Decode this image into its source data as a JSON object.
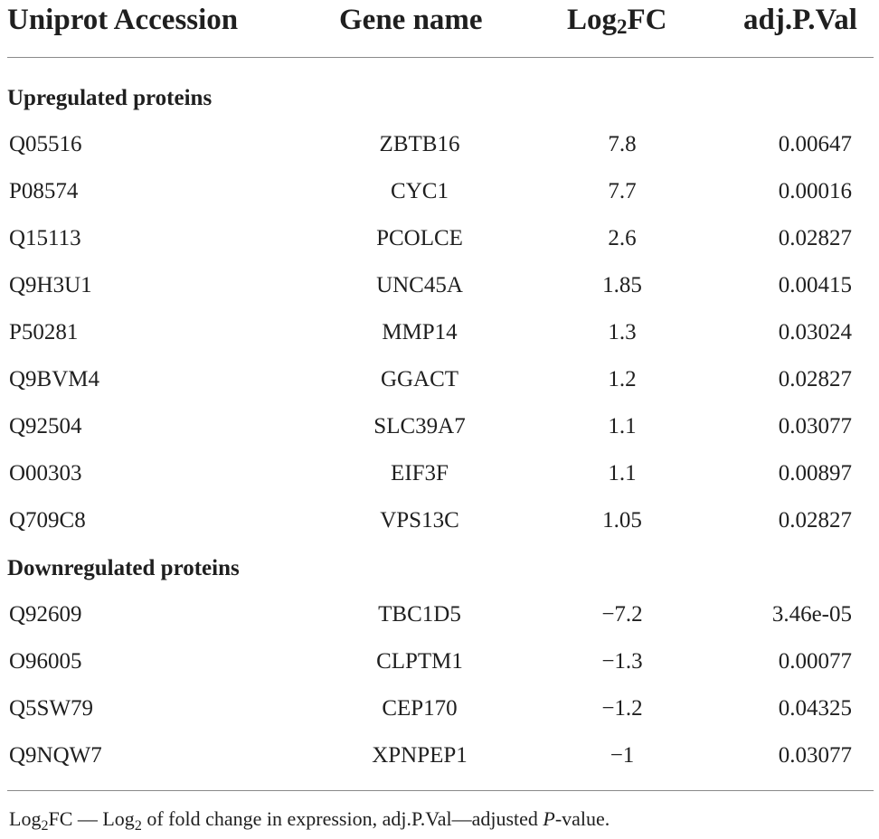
{
  "table": {
    "headers": {
      "accession": "Uniprot Accession",
      "gene": "Gene name",
      "fc_main": "Log",
      "fc_sub": "2",
      "fc_tail": "FC",
      "pval": "adj.P.Val"
    },
    "sections": [
      {
        "title": "Upregulated proteins",
        "rows": [
          {
            "accession": "Q05516",
            "gene": "ZBTB16",
            "log2fc": "7.8",
            "adj_p": "0.00647"
          },
          {
            "accession": "P08574",
            "gene": "CYC1",
            "log2fc": "7.7",
            "adj_p": "0.00016"
          },
          {
            "accession": "Q15113",
            "gene": "PCOLCE",
            "log2fc": "2.6",
            "adj_p": "0.02827"
          },
          {
            "accession": "Q9H3U1",
            "gene": "UNC45A",
            "log2fc": "1.85",
            "adj_p": "0.00415"
          },
          {
            "accession": "P50281",
            "gene": "MMP14",
            "log2fc": "1.3",
            "adj_p": "0.03024"
          },
          {
            "accession": "Q9BVM4",
            "gene": "GGACT",
            "log2fc": "1.2",
            "adj_p": "0.02827"
          },
          {
            "accession": "Q92504",
            "gene": "SLC39A7",
            "log2fc": "1.1",
            "adj_p": "0.03077"
          },
          {
            "accession": "O00303",
            "gene": "EIF3F",
            "log2fc": "1.1",
            "adj_p": "0.00897"
          },
          {
            "accession": "Q709C8",
            "gene": "VPS13C",
            "log2fc": "1.05",
            "adj_p": "0.02827"
          }
        ]
      },
      {
        "title": "Downregulated proteins",
        "rows": [
          {
            "accession": "Q92609",
            "gene": "TBC1D5",
            "log2fc": "−7.2",
            "adj_p": "3.46e-05"
          },
          {
            "accession": "O96005",
            "gene": "CLPTM1",
            "log2fc": "−1.3",
            "adj_p": "0.00077"
          },
          {
            "accession": "Q5SW79",
            "gene": "CEP170",
            "log2fc": "−1.2",
            "adj_p": "0.04325"
          },
          {
            "accession": "Q9NQW7",
            "gene": "XPNPEP1",
            "log2fc": "−1",
            "adj_p": "0.03077"
          }
        ]
      }
    ],
    "footnote": {
      "t1": "Log",
      "s1": "2",
      "t2": "FC — Log",
      "s2": "2",
      "t3": " of fold change in expression, adj.P.Val—adjusted ",
      "italic": "P",
      "t4": "-value."
    }
  }
}
